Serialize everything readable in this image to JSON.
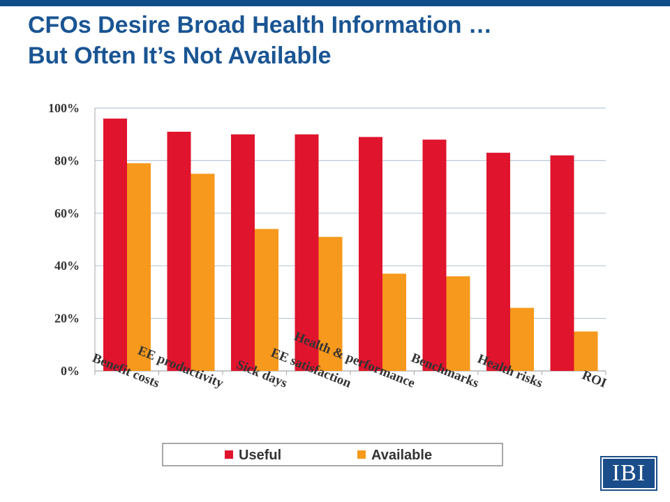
{
  "slide": {
    "title_line1": "CFOs Desire Broad Health Information …",
    "title_line2": "But Often It’s Not Available"
  },
  "logo": {
    "text": "IBI"
  },
  "colors": {
    "header_bar": "#0f4c8a",
    "title": "#1a5593",
    "useful": "#e0142d",
    "available": "#f7991c",
    "grid": "#b8c9d9"
  },
  "chart_data": {
    "type": "bar",
    "categories": [
      "Benefit costs",
      "EE productivity",
      "Sick days",
      "EE satisfaction",
      "Health & performance",
      "Benchmarks",
      "Health risks",
      "ROI"
    ],
    "series": [
      {
        "name": "Useful",
        "values": [
          96,
          91,
          90,
          90,
          89,
          88,
          83,
          82
        ],
        "color": "#e0142d"
      },
      {
        "name": "Available",
        "values": [
          79,
          75,
          54,
          51,
          37,
          36,
          24,
          15
        ],
        "color": "#f7991c"
      }
    ],
    "y_ticks": [
      "0%",
      "20%",
      "40%",
      "60%",
      "80%",
      "100%"
    ],
    "ylim": [
      0,
      100
    ],
    "y_unit": "%",
    "grid": true,
    "legend_position": "bottom"
  }
}
